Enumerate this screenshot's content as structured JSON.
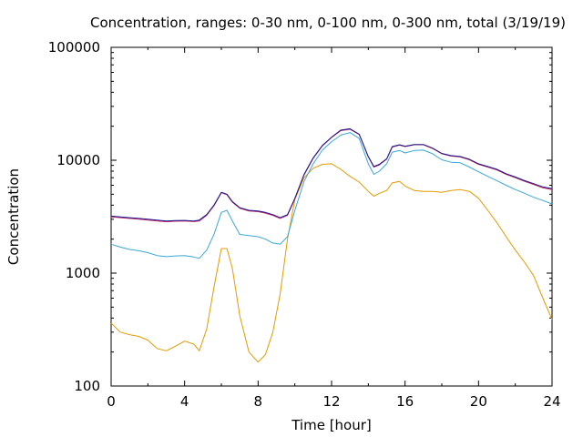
{
  "chart_data": {
    "type": "line",
    "title": "Concentration, ranges: 0-30 nm, 0-100 nm, 0-300 nm, total (3/19/19)",
    "xlabel": "Time [hour]",
    "ylabel": "Concentration",
    "xlim": [
      0,
      24
    ],
    "ylim": [
      100,
      100000
    ],
    "yscale": "log",
    "grid": false,
    "legend": "none",
    "x_ticks": [
      0,
      4,
      8,
      12,
      16,
      20,
      24
    ],
    "x_tick_labels": [
      "0",
      "4",
      "8",
      "12",
      "16",
      "20",
      "24"
    ],
    "y_ticks": [
      100,
      1000,
      10000,
      100000
    ],
    "y_tick_labels": [
      "100",
      "1000",
      "10000",
      "100000"
    ],
    "x": [
      0,
      0.5,
      1,
      1.5,
      2,
      2.5,
      3,
      3.5,
      4,
      4.5,
      4.8,
      5.2,
      5.6,
      6,
      6.3,
      6.6,
      7,
      7.5,
      8,
      8.4,
      8.8,
      9.2,
      9.6,
      10,
      10.5,
      11,
      11.5,
      12,
      12.5,
      13,
      13.5,
      14,
      14.3,
      14.6,
      15,
      15.3,
      15.7,
      16,
      16.5,
      17,
      17.5,
      18,
      18.5,
      19,
      19.5,
      20,
      20.5,
      21,
      21.5,
      22,
      22.5,
      23,
      23.5,
      24
    ],
    "series": [
      {
        "color": "#1a1a8c",
        "values": [
          3200,
          3150,
          3100,
          3050,
          3000,
          2950,
          2900,
          2920,
          2930,
          2900,
          2950,
          3300,
          4000,
          5200,
          5000,
          4300,
          3800,
          3600,
          3550,
          3450,
          3300,
          3100,
          3300,
          4600,
          7500,
          10500,
          13500,
          16000,
          18500,
          19000,
          17000,
          10800,
          8800,
          9200,
          10300,
          13200,
          13700,
          13300,
          13800,
          13800,
          12800,
          11500,
          11000,
          10800,
          10200,
          9300,
          8800,
          8300,
          7600,
          7100,
          6600,
          6200,
          5800,
          5600
        ]
      },
      {
        "color": "#c8286e",
        "values": [
          3150,
          3100,
          3050,
          3000,
          2950,
          2900,
          2850,
          2880,
          2890,
          2860,
          2900,
          3250,
          3950,
          5150,
          4950,
          4250,
          3750,
          3550,
          3500,
          3400,
          3250,
          3050,
          3250,
          4550,
          7400,
          10400,
          13400,
          15900,
          18300,
          18800,
          16900,
          10700,
          8700,
          9100,
          10200,
          13100,
          13600,
          13200,
          13700,
          13700,
          12700,
          11400,
          10900,
          10700,
          10100,
          9200,
          8700,
          8200,
          7500,
          7000,
          6500,
          6100,
          5700,
          5500
        ]
      },
      {
        "color": "#3aa8d8",
        "values": [
          1800,
          1700,
          1620,
          1580,
          1520,
          1430,
          1400,
          1420,
          1430,
          1390,
          1350,
          1600,
          2200,
          3450,
          3600,
          2900,
          2200,
          2150,
          2100,
          2000,
          1850,
          1800,
          2100,
          3600,
          6500,
          9300,
          12300,
          14600,
          16700,
          17600,
          15600,
          9300,
          7500,
          8000,
          9300,
          11800,
          12200,
          11600,
          12200,
          12300,
          11400,
          10100,
          9600,
          9500,
          8700,
          7900,
          7200,
          6600,
          6000,
          5500,
          5100,
          4700,
          4400,
          4100
        ]
      },
      {
        "color": "#e39b00",
        "values": [
          360,
          300,
          285,
          275,
          255,
          215,
          205,
          225,
          250,
          235,
          205,
          320,
          750,
          1650,
          1650,
          1100,
          420,
          200,
          163,
          190,
          300,
          650,
          2000,
          4500,
          7000,
          8500,
          9200,
          9300,
          8300,
          7200,
          6400,
          5300,
          4800,
          5100,
          5400,
          6300,
          6500,
          5900,
          5400,
          5300,
          5300,
          5200,
          5400,
          5500,
          5300,
          4600,
          3600,
          2800,
          2100,
          1600,
          1250,
          950,
          600,
          390
        ]
      }
    ]
  }
}
